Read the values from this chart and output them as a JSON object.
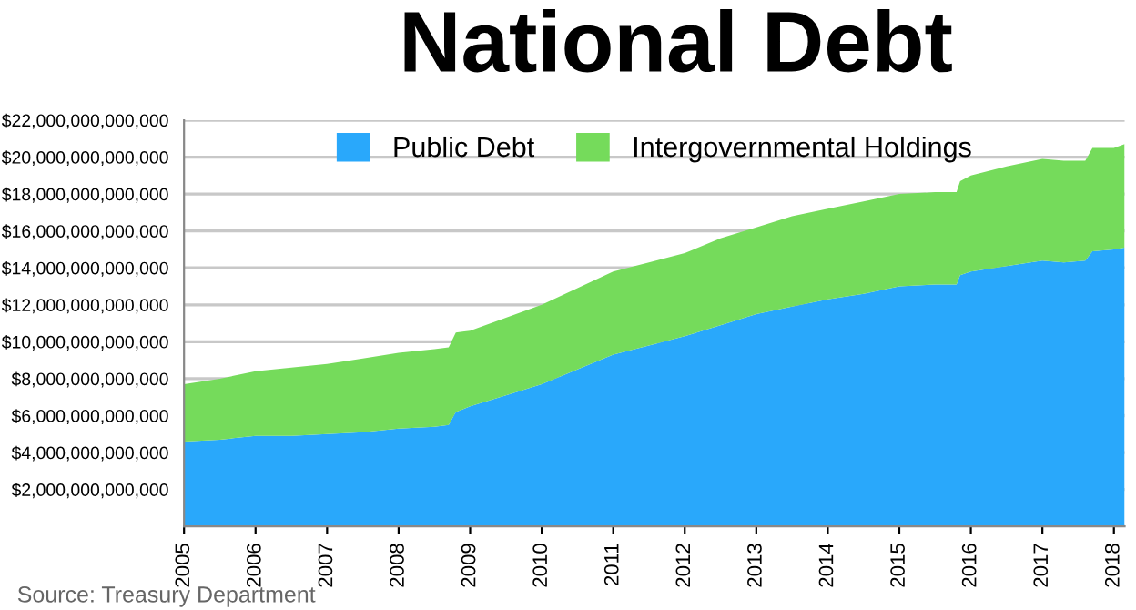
{
  "chart_data": {
    "type": "area",
    "title": "National Debt",
    "stacked": true,
    "x": [
      2005,
      2005.5,
      2006,
      2006.5,
      2007,
      2007.5,
      2008,
      2008.5,
      2008.7,
      2008.8,
      2009,
      2009.5,
      2010,
      2010.5,
      2011,
      2011.5,
      2012,
      2012.5,
      2013,
      2013.5,
      2014,
      2014.5,
      2015,
      2015.5,
      2015.8,
      2015.85,
      2016,
      2016.5,
      2017,
      2017.3,
      2017.6,
      2017.7,
      2018,
      2018.15
    ],
    "series": [
      {
        "name": "Public Debt",
        "color": "#29a8fb",
        "values": [
          4600000000000.0,
          4700000000000.0,
          4900000000000.0,
          4900000000000.0,
          5000000000000.0,
          5100000000000.0,
          5300000000000.0,
          5400000000000.0,
          5500000000000.0,
          6200000000000.0,
          6500000000000.0,
          7100000000000.0,
          7700000000000.0,
          8500000000000.0,
          9300000000000.0,
          9800000000000.0,
          10300000000000.0,
          10900000000000.0,
          11500000000000.0,
          11900000000000.0,
          12300000000000.0,
          12600000000000.0,
          13000000000000.0,
          13100000000000.0,
          13100000000000.0,
          13600000000000.0,
          13800000000000.0,
          14100000000000.0,
          14400000000000.0,
          14300000000000.0,
          14400000000000.0,
          14900000000000.0,
          15000000000000.0,
          15100000000000.0
        ]
      },
      {
        "name": "Intergovernmental Holdings",
        "color": "#75db5b",
        "values": [
          3100000000000.0,
          3300000000000.0,
          3500000000000.0,
          3700000000000.0,
          3800000000000.0,
          4000000000000.0,
          4100000000000.0,
          4200000000000.0,
          4200000000000.0,
          4300000000000.0,
          4100000000000.0,
          4200000000000.0,
          4300000000000.0,
          4400000000000.0,
          4500000000000.0,
          4500000000000.0,
          4500000000000.0,
          4700000000000.0,
          4700000000000.0,
          4900000000000.0,
          4900000000000.0,
          5000000000000.0,
          5000000000000.0,
          5000000000000.0,
          5000000000000.0,
          5100000000000.0,
          5200000000000.0,
          5400000000000.0,
          5500000000000.0,
          5500000000000.0,
          5400000000000.0,
          5600000000000.0,
          5500000000000.0,
          5600000000000.0
        ]
      }
    ],
    "xlim": [
      2005,
      2018.15
    ],
    "xticks": [
      2005,
      2006,
      2007,
      2008,
      2009,
      2010,
      2011,
      2012,
      2013,
      2014,
      2015,
      2016,
      2017,
      2018
    ],
    "ylim": [
      0,
      22000000000000
    ],
    "yticks": [
      {
        "value": 0,
        "label": null
      },
      {
        "value": 2000000000000,
        "label": "$2,000,000,000,000"
      },
      {
        "value": 4000000000000,
        "label": "$4,000,000,000,000"
      },
      {
        "value": 6000000000000,
        "label": "$6,000,000,000,000"
      },
      {
        "value": 8000000000000,
        "label": "$8,000,000,000,000"
      },
      {
        "value": 10000000000000,
        "label": "$10,000,000,000,000"
      },
      {
        "value": 12000000000000,
        "label": "$12,000,000,000,000"
      },
      {
        "value": 14000000000000,
        "label": "$14,000,000,000,000"
      },
      {
        "value": 16000000000000,
        "label": "$16,000,000,000,000"
      },
      {
        "value": 18000000000000,
        "label": "$18,000,000,000,000"
      },
      {
        "value": 20000000000000,
        "label": "$20,000,000,000,000"
      },
      {
        "value": 22000000000000,
        "label": "$22,000,000,000,000"
      }
    ],
    "grid": "y",
    "legend": "top",
    "annotations": [
      "Source: Treasury Department"
    ]
  }
}
